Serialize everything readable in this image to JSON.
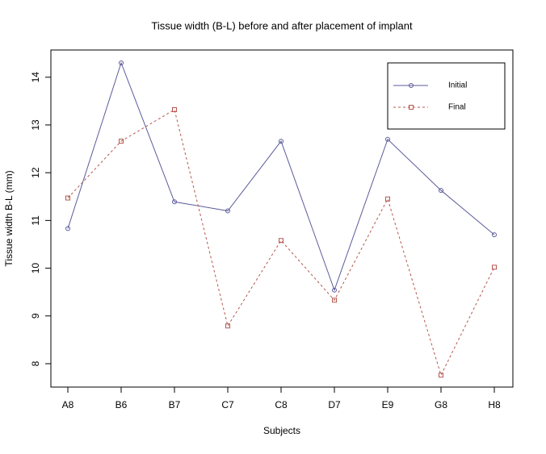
{
  "chart_data": {
    "type": "line",
    "title": "Tissue width (B-L) before and after placement of implant",
    "x_label": "Subjects",
    "y_label": "Tissue width B-L (mm)",
    "categories": [
      "A8",
      "B6",
      "B7",
      "C7",
      "C8",
      "D7",
      "E9",
      "G8",
      "H8"
    ],
    "series": [
      {
        "name": "Initial",
        "color": "#5b5b9b",
        "dash": "solid",
        "marker": "circle",
        "values": [
          10.83,
          14.3,
          11.39,
          11.2,
          12.66,
          9.54,
          12.7,
          11.63,
          10.7
        ]
      },
      {
        "name": "Final",
        "color": "#b5574f",
        "dash": "dashed",
        "marker": "square",
        "values": [
          11.47,
          12.66,
          13.32,
          8.79,
          10.58,
          9.33,
          11.45,
          7.76,
          10.02
        ]
      }
    ],
    "ylim": [
      7.51,
      14.57
    ],
    "yticks": [
      8,
      9,
      10,
      11,
      12,
      13,
      14
    ],
    "legend": "top-right",
    "grid": false
  }
}
